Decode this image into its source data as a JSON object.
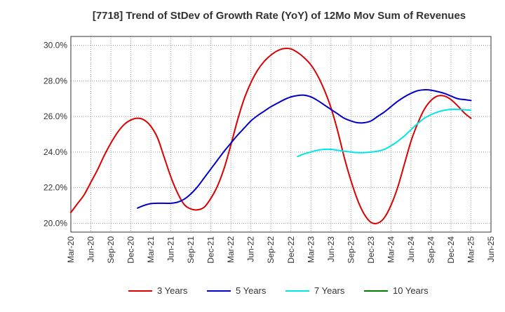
{
  "chart_data": {
    "type": "line",
    "title": "[7718]  Trend of StDev of Growth Rate (YoY) of 12Mo Mov Sum of Revenues",
    "xlabel": "",
    "ylabel": "",
    "ylim": [
      19.5,
      30.5
    ],
    "y_ticks": [
      20.0,
      22.0,
      24.0,
      26.0,
      28.0,
      30.0
    ],
    "y_tick_labels": [
      "20.0%",
      "22.0%",
      "24.0%",
      "26.0%",
      "28.0%",
      "30.0%"
    ],
    "x_tick_labels": [
      "Mar-20",
      "Jun-20",
      "Sep-20",
      "Dec-20",
      "Mar-21",
      "Jun-21",
      "Sep-21",
      "Dec-21",
      "Mar-22",
      "Jun-22",
      "Sep-22",
      "Dec-22",
      "Mar-23",
      "Jun-23",
      "Sep-23",
      "Dec-23",
      "Mar-24",
      "Jun-24",
      "Sep-24",
      "Dec-24",
      "Mar-25",
      "Jun-25"
    ],
    "x_range_months": [
      0,
      63
    ],
    "grid": true,
    "legend_position": "bottom",
    "series": [
      {
        "name": "3 Years",
        "color": "#dd0000",
        "x": [
          0,
          1,
          2,
          3,
          4,
          5,
          6,
          7,
          8,
          9,
          10,
          11,
          12,
          13,
          14,
          15,
          16,
          17,
          18,
          19,
          20,
          21,
          22,
          23,
          24,
          25,
          26,
          27,
          28,
          29,
          30,
          31,
          32,
          33,
          34,
          35,
          36,
          37,
          38,
          39,
          40,
          41,
          42,
          43,
          44,
          45,
          46,
          47,
          48,
          49,
          50,
          51,
          52,
          53,
          54,
          55,
          56,
          57,
          58,
          59,
          60
        ],
        "values": [
          20.6,
          21.1,
          21.6,
          22.3,
          23.0,
          23.8,
          24.5,
          25.1,
          25.55,
          25.8,
          25.9,
          25.8,
          25.45,
          24.8,
          23.7,
          22.6,
          21.7,
          21.05,
          20.8,
          20.75,
          20.9,
          21.4,
          22.1,
          23.1,
          24.4,
          25.8,
          27.0,
          27.9,
          28.6,
          29.1,
          29.45,
          29.7,
          29.82,
          29.8,
          29.6,
          29.3,
          28.9,
          28.3,
          27.5,
          26.5,
          25.2,
          23.7,
          22.4,
          21.3,
          20.5,
          20.05,
          20.0,
          20.3,
          21.0,
          22.0,
          23.3,
          24.6,
          25.6,
          26.4,
          26.9,
          27.15,
          27.15,
          26.95,
          26.6,
          26.2,
          25.9
        ]
      },
      {
        "name": "5 Years",
        "color": "#0000cc",
        "x": [
          10,
          11,
          12,
          13,
          14,
          15,
          16,
          17,
          18,
          19,
          20,
          21,
          22,
          23,
          24,
          25,
          26,
          27,
          28,
          29,
          30,
          31,
          32,
          33,
          34,
          35,
          36,
          37,
          38,
          39,
          40,
          41,
          42,
          43,
          44,
          45,
          46,
          47,
          48,
          49,
          50,
          51,
          52,
          53,
          54,
          55,
          56,
          57,
          58,
          59,
          60
        ],
        "values": [
          20.85,
          21.0,
          21.1,
          21.12,
          21.12,
          21.12,
          21.18,
          21.35,
          21.65,
          22.05,
          22.55,
          23.05,
          23.55,
          24.05,
          24.5,
          24.95,
          25.35,
          25.75,
          26.05,
          26.3,
          26.55,
          26.75,
          26.95,
          27.1,
          27.18,
          27.2,
          27.1,
          26.9,
          26.65,
          26.4,
          26.15,
          25.9,
          25.75,
          25.65,
          25.65,
          25.75,
          26.0,
          26.25,
          26.55,
          26.85,
          27.1,
          27.3,
          27.45,
          27.5,
          27.48,
          27.4,
          27.3,
          27.15,
          27.0,
          26.95,
          26.9
        ]
      },
      {
        "name": "7 Years",
        "color": "#00e5e5",
        "x": [
          34,
          35,
          36,
          37,
          38,
          39,
          40,
          41,
          42,
          43,
          44,
          45,
          46,
          47,
          48,
          49,
          50,
          51,
          52,
          53,
          54,
          55,
          56,
          57,
          58,
          59,
          60
        ],
        "values": [
          23.75,
          23.9,
          24.0,
          24.1,
          24.15,
          24.15,
          24.1,
          24.05,
          24.0,
          23.97,
          23.97,
          24.0,
          24.05,
          24.15,
          24.35,
          24.6,
          24.9,
          25.25,
          25.6,
          25.9,
          26.1,
          26.25,
          26.35,
          26.4,
          26.4,
          26.38,
          26.35
        ]
      },
      {
        "name": "10 Years",
        "color": "#008000",
        "x": [],
        "values": []
      }
    ]
  }
}
